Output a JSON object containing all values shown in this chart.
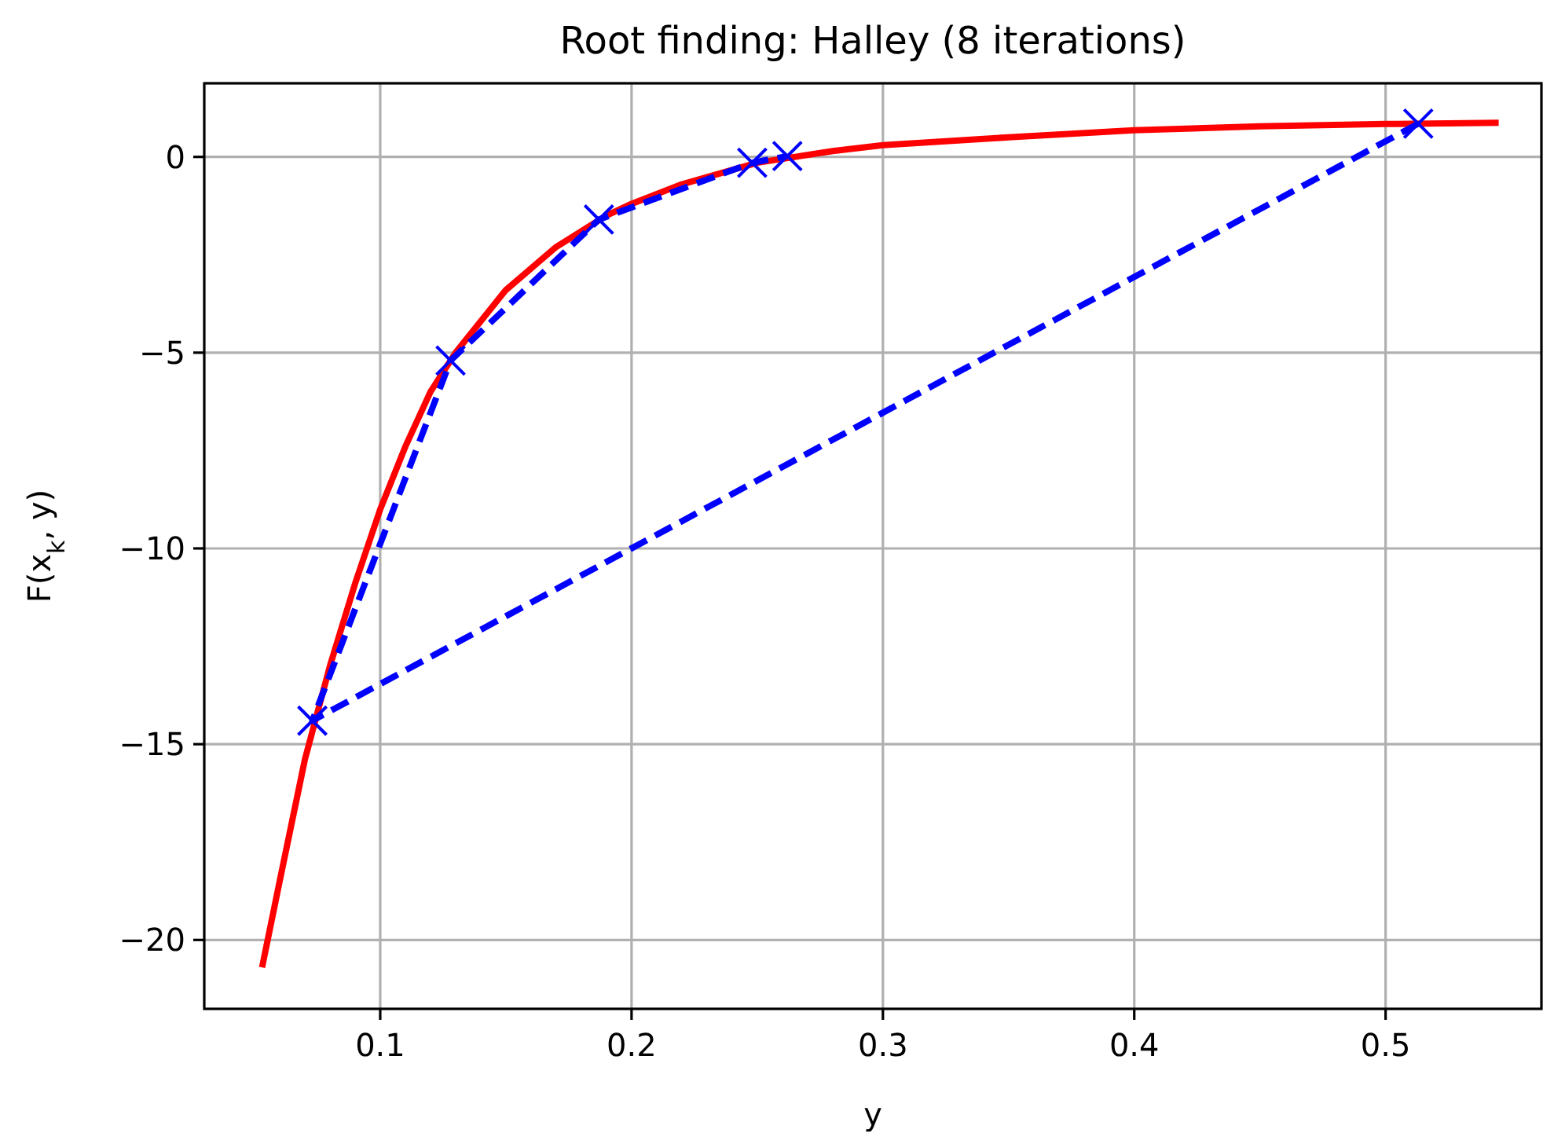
{
  "chart_data": {
    "type": "line",
    "title": "Root finding: Halley (8 iterations)",
    "xlabel": "y",
    "ylabel": "F(x$_{k}$, y)",
    "xlim": [
      0.03,
      0.562
    ],
    "ylim": [
      -21.76,
      1.88
    ],
    "xticks": [
      0.1,
      0.2,
      0.3,
      0.4,
      0.5
    ],
    "yticks": [
      {
        "value": 0,
        "label": "0"
      },
      {
        "value": -5,
        "label": "−5"
      },
      {
        "value": -10,
        "label": "−10"
      },
      {
        "value": -15,
        "label": "−15"
      },
      {
        "value": -20,
        "label": "−20"
      }
    ],
    "grid": true,
    "series": [
      {
        "color": "#ff0000",
        "line_style": "solid",
        "marker": "none",
        "x": [
          0.053,
          0.06,
          0.07,
          0.08,
          0.09,
          0.1,
          0.11,
          0.12,
          0.13,
          0.15,
          0.17,
          0.19,
          0.2,
          0.22,
          0.25,
          0.28,
          0.3,
          0.35,
          0.4,
          0.45,
          0.5,
          0.545
        ],
        "values": [
          -20.7,
          -18.5,
          -15.4,
          -13.0,
          -10.9,
          -9.0,
          -7.4,
          -6.0,
          -5.0,
          -3.4,
          -2.3,
          -1.5,
          -1.2,
          -0.7,
          -0.15,
          0.15,
          0.3,
          0.5,
          0.68,
          0.78,
          0.84,
          0.87
        ]
      },
      {
        "color": "#0000ff",
        "line_style": "dashed",
        "marker": "cross",
        "x": [
          0.513,
          0.073,
          0.128,
          0.187,
          0.248,
          0.262
        ],
        "values": [
          0.85,
          -14.4,
          -5.2,
          -1.6,
          -0.15,
          0.02
        ]
      }
    ]
  }
}
